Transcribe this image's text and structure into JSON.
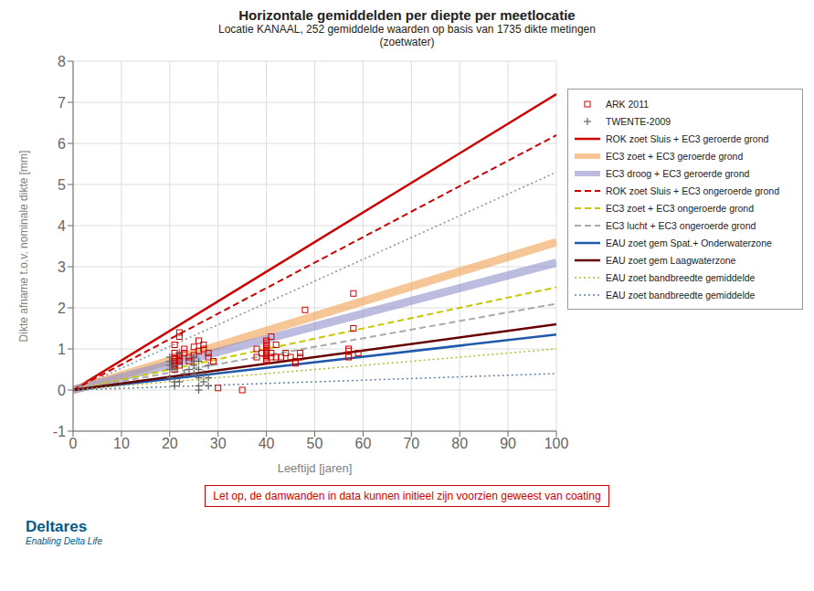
{
  "chart_data": {
    "type": "line",
    "title": "Horizontale gemiddelden per diepte per meetlocatie",
    "subtitle": "Locatie KANAAL, 252 gemiddelde waarden op basis van 1735 dikte metingen\n(zoetwater)",
    "xlabel": "Leeftijd [jaren]",
    "ylabel": "Dikte afname t.o.v. nominale dikte [mm]",
    "xlim": [
      0,
      100
    ],
    "ylim": [
      -1,
      8
    ],
    "xticks": [
      0,
      10,
      20,
      30,
      40,
      50,
      60,
      70,
      80,
      90,
      100
    ],
    "yticks": [
      -1,
      0,
      1,
      2,
      3,
      4,
      5,
      6,
      7,
      8
    ],
    "grid": true,
    "legend": "right",
    "series": [
      {
        "type": "line",
        "color": "#8090a8",
        "line_style": "dotted",
        "x": [
          0,
          100
        ],
        "values": [
          0,
          5.3
        ]
      },
      {
        "name": "ARK 2011",
        "type": "scatter",
        "marker": "square",
        "color": "#cc0000",
        "x": [
          21,
          21,
          21,
          21,
          21,
          21,
          21,
          21,
          22,
          22,
          22,
          22,
          22,
          22,
          22,
          23,
          23,
          24,
          24,
          25,
          25,
          26,
          26,
          27,
          27,
          28,
          28,
          29,
          30,
          35,
          38,
          38,
          39,
          40,
          40,
          40,
          40,
          40,
          40,
          40,
          40,
          40,
          40,
          40,
          41,
          41,
          41,
          42,
          42,
          43,
          44,
          45,
          46,
          46,
          47,
          47,
          48,
          57,
          57,
          57,
          58,
          58,
          59
        ],
        "values": [
          0.7,
          0.8,
          0.75,
          0.9,
          1.1,
          0.6,
          0.65,
          0.5,
          0.8,
          0.85,
          1.3,
          1.4,
          0.7,
          0.75,
          0.6,
          0.9,
          1.0,
          0.8,
          0.7,
          1.05,
          0.85,
          1.2,
          0.95,
          1.0,
          1.1,
          0.9,
          0.8,
          0.7,
          0.05,
          0.0,
          1.0,
          0.8,
          0.9,
          0.8,
          0.85,
          1.0,
          1.05,
          0.9,
          0.95,
          0.75,
          0.7,
          1.1,
          1.15,
          1.2,
          0.9,
          0.8,
          1.3,
          1.1,
          0.8,
          0.8,
          0.9,
          0.8,
          0.7,
          0.65,
          0.9,
          0.8,
          1.95,
          0.8,
          0.95,
          1.0,
          2.35,
          1.5,
          0.9
        ]
      },
      {
        "name": "TWENTE-2009",
        "type": "scatter",
        "marker": "plus",
        "color": "#666666",
        "x": [
          20,
          20,
          20,
          20,
          20,
          21,
          21,
          21,
          21,
          22,
          22,
          23,
          24,
          25,
          25,
          25,
          25,
          26,
          26,
          26,
          26,
          26,
          27,
          27,
          28,
          28,
          28
        ],
        "values": [
          0.3,
          0.5,
          0.6,
          0.7,
          0.8,
          0.1,
          0.2,
          0.5,
          0.6,
          0.2,
          0.9,
          0.4,
          0.5,
          0.4,
          0.6,
          0.7,
          0.8,
          0.0,
          0.1,
          0.3,
          0.5,
          0.7,
          0.2,
          0.4,
          0.1,
          0.3,
          0.6
        ]
      },
      {
        "name": "ROK zoet Sluis + EC3 geroerde grond",
        "type": "line",
        "color": "#cc0000",
        "line_style": "solid",
        "x": [
          0,
          100
        ],
        "values": [
          0,
          7.2
        ]
      },
      {
        "name": "EC3 zoet + EC3 geroerde grond",
        "type": "line",
        "color": "#f0a050",
        "line_style": "band",
        "x": [
          0,
          100
        ],
        "values": [
          0,
          3.6
        ]
      },
      {
        "name": "EC3 droog + EC3 geroerde grond",
        "type": "line",
        "color": "#9090cc",
        "line_style": "band",
        "x": [
          0,
          100
        ],
        "values": [
          0,
          3.1
        ]
      },
      {
        "name": "ROK zoet Sluis + EC3 ongeroerde grond",
        "type": "line",
        "color": "#cc0000",
        "line_style": "dashed",
        "x": [
          0,
          100
        ],
        "values": [
          0,
          6.2
        ]
      },
      {
        "name": "EC3 zoet + EC3 ongeroerde grond",
        "type": "line",
        "color": "#c8c800",
        "line_style": "dashed",
        "x": [
          0,
          100
        ],
        "values": [
          0,
          2.5
        ]
      },
      {
        "name": "EC3 lucht + EC3 ongeroerde grond",
        "type": "line",
        "color": "#aaaaaa",
        "line_style": "dashed",
        "x": [
          0,
          100
        ],
        "values": [
          0,
          2.1
        ]
      },
      {
        "name": "EAU zoet gem Spat.+ Onderwaterzone",
        "type": "line",
        "color": "#1f5aaa",
        "line_style": "solid",
        "x": [
          0,
          100
        ],
        "values": [
          0,
          1.35
        ]
      },
      {
        "name": "EAU zoet gem Laagwaterzone",
        "type": "line",
        "color": "#660000",
        "line_style": "solid",
        "x": [
          0,
          100
        ],
        "values": [
          0,
          1.6
        ]
      },
      {
        "name": "EAU zoet bandbreedte gemiddelde",
        "type": "line",
        "color": "#b8b830",
        "line_style": "dotted",
        "x": [
          0,
          100
        ],
        "values": [
          0,
          1.0
        ]
      },
      {
        "name": "EAU zoet bandbreedte gemiddelde",
        "type": "line",
        "color": "#6080a0",
        "line_style": "dotted",
        "x": [
          0,
          100
        ],
        "values": [
          0,
          0.4
        ]
      }
    ],
    "annotations": [
      {
        "text": "Let op, de damwanden in data kunnen initieel zijn voorzien geweest van coating",
        "color": "#cc0000"
      },
      {
        "text": "Deltares",
        "color": "#005b8e"
      },
      {
        "text": "Enabling Delta Life",
        "color": "#005b8e"
      }
    ]
  }
}
